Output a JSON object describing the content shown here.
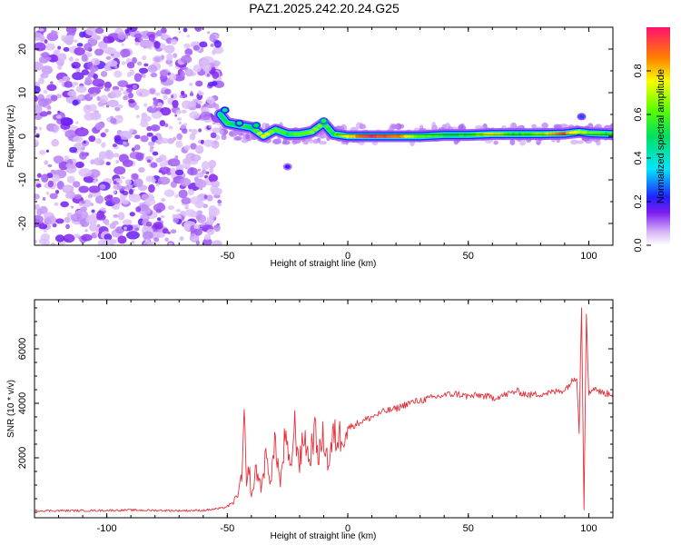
{
  "title": "PAZ1.2025.242.20.24.G25",
  "colors": {
    "spectrogram_noise": "#7d1cf0",
    "spectrogram_noise_light": "#c9a6f5",
    "spectrogram_signal": "#00e060",
    "spectrogram_peak": "#e8183c",
    "snr_line": "#e8303a",
    "axis": "#000000"
  },
  "chart_data": [
    {
      "type": "heatmap",
      "name": "spectrogram",
      "title": "PAZ1.2025.242.20.24.G25",
      "xlabel": "Height of straight line (km)",
      "ylabel": "Frequency (Hz)",
      "xlim": [
        -130,
        110
      ],
      "ylim": [
        -25,
        25
      ],
      "xticks": [
        -100,
        -50,
        0,
        50,
        100
      ],
      "xtick_labels": [
        "-100",
        "-50",
        "0",
        "50",
        "100"
      ],
      "yticks": [
        -20,
        -10,
        0,
        10,
        20
      ],
      "ytick_labels": [
        "-20",
        "-10",
        "0",
        "10",
        "20"
      ],
      "noise_region_x": [
        -130,
        -53
      ],
      "signal_start_x": -53,
      "ridge": [
        {
          "x": -53,
          "y": 5,
          "amp": 0.45
        },
        {
          "x": -50,
          "y": 3,
          "amp": 0.55
        },
        {
          "x": -45,
          "y": 2.5,
          "amp": 0.5
        },
        {
          "x": -40,
          "y": 2,
          "amp": 0.55
        },
        {
          "x": -35,
          "y": 0,
          "amp": 0.75
        },
        {
          "x": -30,
          "y": 1.5,
          "amp": 0.6
        },
        {
          "x": -25,
          "y": 0.5,
          "amp": 0.55
        },
        {
          "x": -20,
          "y": 0.5,
          "amp": 0.6
        },
        {
          "x": -15,
          "y": 1,
          "amp": 0.65
        },
        {
          "x": -10,
          "y": 3,
          "amp": 0.6
        },
        {
          "x": -6,
          "y": 0.5,
          "amp": 0.55
        },
        {
          "x": 0,
          "y": 0,
          "amp": 0.75
        },
        {
          "x": 10,
          "y": 0,
          "amp": 0.95
        },
        {
          "x": 20,
          "y": 0,
          "amp": 0.9
        },
        {
          "x": 30,
          "y": 0,
          "amp": 0.6
        },
        {
          "x": 40,
          "y": 0.3,
          "amp": 0.55
        },
        {
          "x": 50,
          "y": 0.3,
          "amp": 0.55
        },
        {
          "x": 60,
          "y": 0.5,
          "amp": 0.75
        },
        {
          "x": 70,
          "y": 0.5,
          "amp": 0.55
        },
        {
          "x": 80,
          "y": 0.5,
          "amp": 0.65
        },
        {
          "x": 90,
          "y": 0.6,
          "amp": 0.9
        },
        {
          "x": 96,
          "y": 1,
          "amp": 0.7
        },
        {
          "x": 100,
          "y": 0.7,
          "amp": 0.65
        },
        {
          "x": 110,
          "y": 0.5,
          "amp": 0.55
        }
      ],
      "blobs": [
        {
          "x": -51,
          "y": 6,
          "amp": 0.45
        },
        {
          "x": -45,
          "y": 3,
          "amp": 0.45
        },
        {
          "x": -38,
          "y": 2.5,
          "amp": 0.5
        },
        {
          "x": -25,
          "y": -7,
          "amp": 0.2
        },
        {
          "x": -10,
          "y": 3.5,
          "amp": 0.55
        },
        {
          "x": 97,
          "y": 4.5,
          "amp": 0.25
        }
      ],
      "colorbar": {
        "label": "Normalized spectral amplitude",
        "ticks": [
          0.0,
          0.2,
          0.4,
          0.6,
          0.8
        ],
        "tick_labels": [
          "0.0",
          "0.2",
          "0.4",
          "0.6",
          "0.8"
        ],
        "range": [
          0,
          1
        ]
      }
    },
    {
      "type": "line",
      "name": "snr",
      "xlabel": "Height of straight line (km)",
      "ylabel": "SNR (10 * v/v)",
      "xlim": [
        -130,
        110
      ],
      "ylim": [
        -200,
        7800
      ],
      "xticks": [
        -100,
        -50,
        0,
        50,
        100
      ],
      "xtick_labels": [
        "-100",
        "-50",
        "0",
        "50",
        "100"
      ],
      "yticks": [
        2000,
        4000,
        6000
      ],
      "ytick_labels": [
        "2000",
        "4000",
        "6000"
      ],
      "series": [
        {
          "name": "SNR",
          "x": [
            -130,
            -110,
            -90,
            -70,
            -60,
            -52,
            -48,
            -46,
            -44,
            -43,
            -42,
            -41,
            -40,
            -38,
            -36,
            -34,
            -32,
            -30,
            -28,
            -26,
            -24,
            -22,
            -20,
            -18,
            -16,
            -14,
            -12,
            -10,
            -8,
            -6,
            -4,
            -2,
            0,
            5,
            10,
            15,
            20,
            25,
            30,
            35,
            40,
            45,
            50,
            55,
            60,
            65,
            70,
            75,
            80,
            85,
            90,
            93,
            95,
            96,
            97,
            98,
            99,
            100,
            102,
            105,
            108,
            110
          ],
          "values": [
            60,
            60,
            80,
            60,
            70,
            150,
            300,
            600,
            1200,
            3500,
            800,
            1800,
            500,
            1600,
            900,
            2000,
            1200,
            2600,
            1000,
            2800,
            1500,
            3100,
            1800,
            2900,
            1800,
            3000,
            2100,
            2800,
            1700,
            2800,
            2700,
            3000,
            3100,
            3300,
            3500,
            3700,
            3800,
            4000,
            4100,
            4200,
            4300,
            4350,
            4250,
            4300,
            4200,
            4300,
            4450,
            4300,
            4350,
            4400,
            4500,
            4800,
            5000,
            3000,
            7600,
            200,
            7400,
            4300,
            4600,
            4400,
            4350,
            4350
          ]
        }
      ]
    }
  ]
}
